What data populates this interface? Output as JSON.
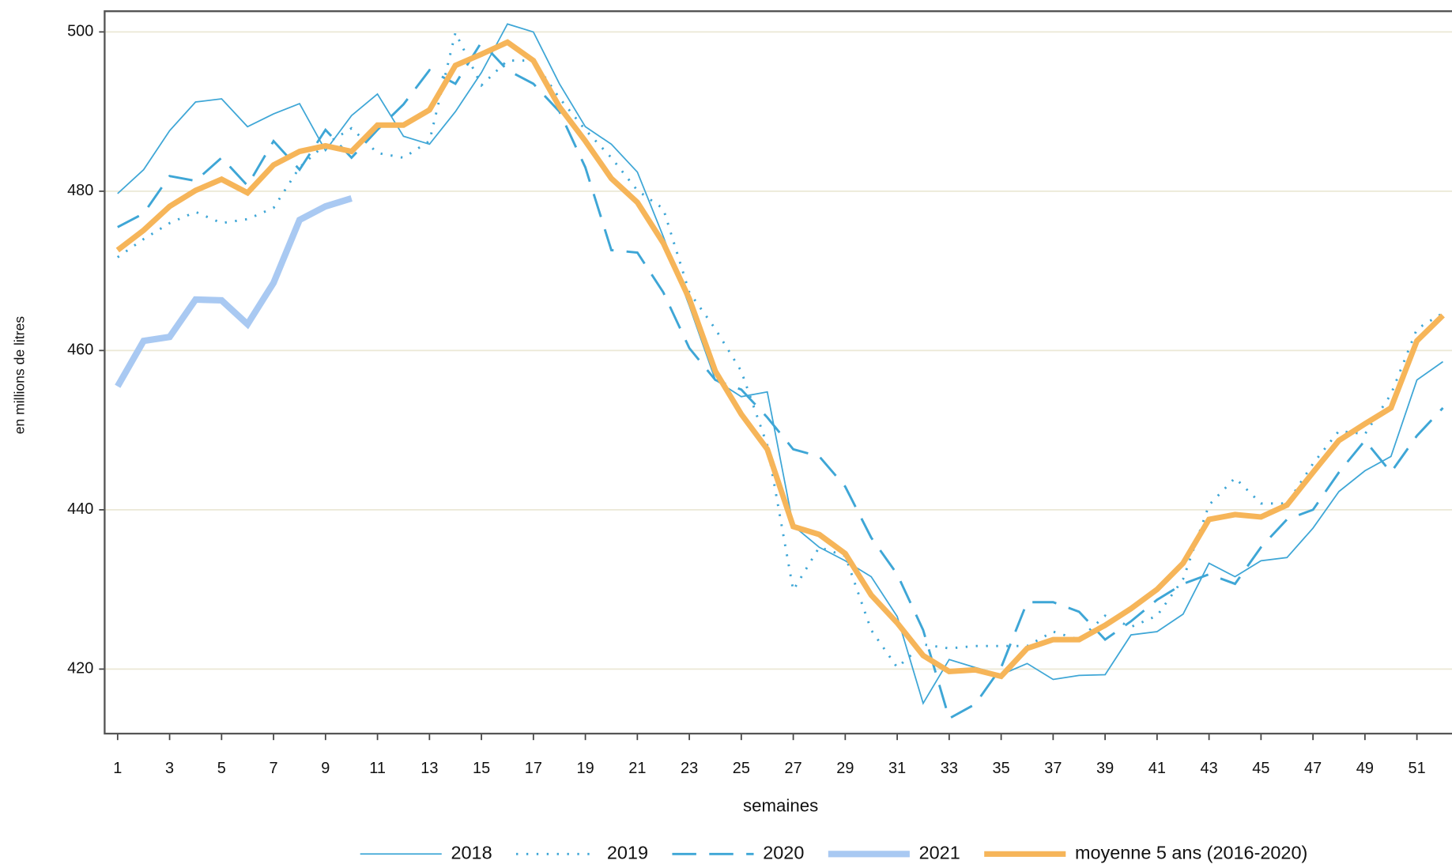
{
  "chart_data": {
    "type": "line",
    "x_label": "semaines",
    "y_label": "en millions de litres",
    "x": [
      1,
      2,
      3,
      4,
      5,
      6,
      7,
      8,
      9,
      10,
      11,
      12,
      13,
      14,
      15,
      16,
      17,
      18,
      19,
      20,
      21,
      22,
      23,
      24,
      25,
      26,
      27,
      28,
      29,
      30,
      31,
      32,
      33,
      34,
      35,
      36,
      37,
      38,
      39,
      40,
      41,
      42,
      43,
      44,
      45,
      46,
      47,
      48,
      49,
      50,
      51,
      52
    ],
    "xlim": [
      0.5,
      52.35
    ],
    "ylim": [
      411.9,
      502.6
    ],
    "xticks": [
      1,
      3,
      5,
      7,
      9,
      11,
      13,
      15,
      17,
      19,
      21,
      23,
      25,
      27,
      29,
      31,
      33,
      35,
      37,
      39,
      41,
      43,
      45,
      47,
      49,
      51
    ],
    "yticks": [
      420,
      440,
      460,
      480,
      500
    ],
    "grid": true,
    "legend": "bottom",
    "series": [
      {
        "name": "2018",
        "color": "#3ea6d6",
        "dash": "solid",
        "width": 1.5,
        "values": [
          479.7,
          482.7,
          487.6,
          491.2,
          491.6,
          488.1,
          489.7,
          491,
          485.1,
          489.5,
          492.2,
          486.9,
          485.9,
          490,
          494.9,
          501,
          500,
          493.5,
          488.1,
          485.9,
          482.4,
          474.3,
          465.6,
          456.3,
          454.2,
          454.8,
          438,
          435.3,
          433.6,
          431.6,
          426.6,
          415.7,
          421.2,
          420.2,
          419.3,
          420.7,
          418.7,
          419.2,
          419.3,
          424.3,
          424.7,
          426.9,
          433.3,
          431.6,
          433.6,
          434,
          437.7,
          442.3,
          444.9,
          446.7,
          456.3,
          458.6
        ]
      },
      {
        "name": "2019",
        "color": "#3ea6d6",
        "dash": "dotted",
        "width": 2.5,
        "values": [
          471.7,
          474,
          476,
          477.4,
          476,
          476.5,
          477.9,
          483,
          485.9,
          487.9,
          484.8,
          484.2,
          486.3,
          499.9,
          493.3,
          496.4,
          496.4,
          491.7,
          487.7,
          484.2,
          480.1,
          477.8,
          467.3,
          462.7,
          457.4,
          448.1,
          429.9,
          435.3,
          434.2,
          424.9,
          420.2,
          423.1,
          422.6,
          422.9,
          422.9,
          422.9,
          424.7,
          423.7,
          426.7,
          425.3,
          426.7,
          431.3,
          440.6,
          444,
          440.8,
          440.8,
          445.8,
          449.9,
          449.5,
          454.5,
          462.7,
          464.7
        ]
      },
      {
        "name": "2020",
        "color": "#3ea6d6",
        "dash": "dashed",
        "width": 2.5,
        "values": [
          475.5,
          477.2,
          481.9,
          481.3,
          484.2,
          480.7,
          486.3,
          482.7,
          487.7,
          484.2,
          487.7,
          490.9,
          495.2,
          493.5,
          498.7,
          495.2,
          493.5,
          490,
          483,
          472.6,
          472.3,
          467.3,
          460.3,
          456.3,
          455.1,
          451.6,
          447.6,
          446.7,
          442.9,
          436.5,
          431.9,
          424.9,
          413.8,
          415.6,
          420.2,
          428.4,
          428.4,
          427.2,
          423.7,
          426,
          428.7,
          430.7,
          431.9,
          430.7,
          435.3,
          438.8,
          440,
          444.7,
          448.7,
          444.7,
          449.3,
          452.8
        ]
      },
      {
        "name": "2021",
        "color": "#a9c9f2",
        "dash": "solid",
        "width": 7,
        "values": [
          455.5,
          461.2,
          461.7,
          466.4,
          466.3,
          463.3,
          468.5,
          476.4,
          478.1,
          479.1,
          null,
          null,
          null,
          null,
          null,
          null,
          null,
          null,
          null,
          null,
          null,
          null,
          null,
          null,
          null,
          null,
          null,
          null,
          null,
          null,
          null,
          null,
          null,
          null,
          null,
          null,
          null,
          null,
          null,
          null,
          null,
          null,
          null,
          null,
          null,
          null,
          null,
          null,
          null,
          null,
          null,
          null
        ]
      },
      {
        "name": "moyenne 5 ans (2016-2020)",
        "color": "#f6b559",
        "dash": "solid",
        "width": 6,
        "values": [
          472.6,
          475.1,
          478.1,
          480.1,
          481.5,
          479.8,
          483.3,
          485,
          485.7,
          485,
          488.3,
          488.3,
          490.2,
          495.8,
          497.2,
          498.7,
          496.4,
          490.6,
          486.3,
          481.6,
          478.6,
          473.5,
          466.5,
          457.4,
          452,
          447.6,
          437.9,
          436.9,
          434.5,
          429.3,
          425.8,
          421.7,
          419.7,
          419.9,
          419.1,
          422.6,
          423.7,
          423.7,
          425.5,
          427.6,
          430,
          433.3,
          438.8,
          439.4,
          439.1,
          440.6,
          444.7,
          448.7,
          450.8,
          452.8,
          461.2,
          464.4
        ]
      }
    ]
  }
}
